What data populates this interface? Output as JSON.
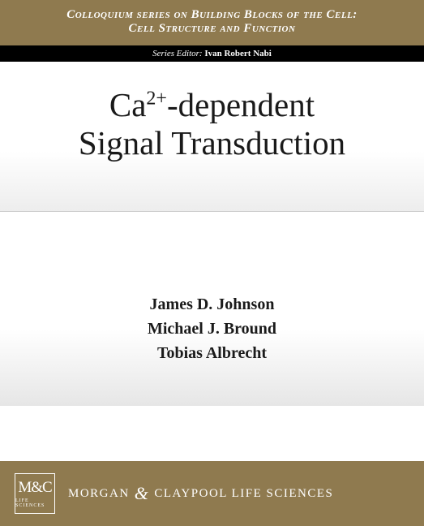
{
  "colors": {
    "band_tan": "#8f7a4f",
    "black": "#000000",
    "text_dark": "#1a1a1a",
    "white": "#ffffff",
    "grad_light": "#ededed",
    "divider": "#cccccc"
  },
  "series": {
    "line1": "Colloquium series on Building Blocks of the Cell:",
    "line2": "Cell Structure and Function"
  },
  "editor": {
    "label": "Series Editor: ",
    "name": "Ivan Robert Nabi"
  },
  "title": {
    "prefix": "Ca",
    "sup": "2+",
    "rest": "-dependent",
    "line2": "Signal Transduction",
    "fontsize": 41
  },
  "authors": [
    "James D. Johnson",
    "Michael J. Bround",
    "Tobias Albrecht"
  ],
  "publisher": {
    "logo_top": "M&C",
    "logo_bottom": "LIFE SCIENCES",
    "name_left": "MORGAN",
    "amp": "&",
    "name_right": "CLAYPOOL LIFE SCIENCES"
  }
}
